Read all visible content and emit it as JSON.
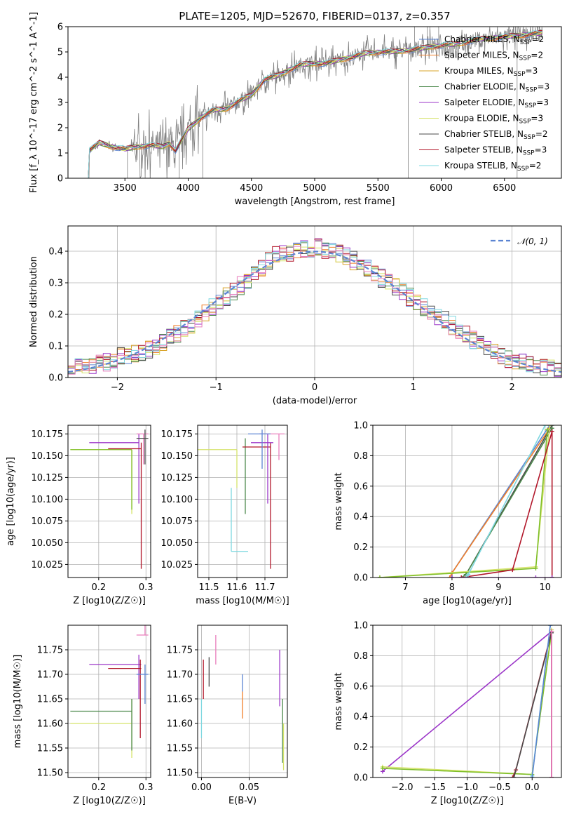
{
  "figure": {
    "title": "PLATE=1205, MJD=52670, FIBERID=0137, z=0.357"
  },
  "colors": {
    "chabrier_miles": "#5b84d2",
    "salpeter_miles": "#f07f2a",
    "kroupa_miles": "#d9a42a",
    "chabrier_elodie": "#4d8a4d",
    "salpeter_elodie": "#9b35c8",
    "kroupa_elodie": "#d5e36a",
    "chabrier_stelib": "#4a4a4a",
    "salpeter_stelib": "#b2182b",
    "kroupa_stelib": "#7fd8e0",
    "data": "#808080",
    "pink": "#e97fbd",
    "lime": "#7fbf2a",
    "grid": "#b0b0b0"
  },
  "chart_data": [
    {
      "id": "spectrum",
      "type": "line",
      "title": "PLATE=1205, MJD=52670, FIBERID=0137, z=0.357",
      "xlabel": "wavelength [Angstrom, rest frame]",
      "ylabel": "Flux [f_λ 10^-17 erg cm^-2 s^-1 A^-1]",
      "xlim": [
        3050,
        6950
      ],
      "ylim": [
        0,
        6
      ],
      "xticks": [
        3500,
        4000,
        4500,
        5000,
        5500,
        6000,
        6500
      ],
      "yticks": [
        0,
        1,
        2,
        3,
        4,
        5,
        6
      ],
      "grid": false,
      "legend_position": "right",
      "legend": [
        {
          "label": "Chabrier MILES, N_SSP=2",
          "color": "#5b84d2"
        },
        {
          "label": "Salpeter MILES, N_SSP=2",
          "color": "#f07f2a"
        },
        {
          "label": "Kroupa MILES, N_SSP=3",
          "color": "#d9a42a"
        },
        {
          "label": "Chabrier ELODIE, N_SSP=3",
          "color": "#4d8a4d"
        },
        {
          "label": "Salpeter ELODIE, N_SSP=3",
          "color": "#9b35c8"
        },
        {
          "label": "Kroupa ELODIE, N_SSP=3",
          "color": "#d5e36a"
        },
        {
          "label": "Chabrier STELIB, N_SSP=2",
          "color": "#4a4a4a"
        },
        {
          "label": "Salpeter STELIB, N_SSP=3",
          "color": "#b2182b"
        },
        {
          "label": "Kroupa STELIB, N_SSP=2",
          "color": "#7fd8e0"
        }
      ],
      "continuum": [
        [
          3220,
          1.1
        ],
        [
          3300,
          1.4
        ],
        [
          3400,
          1.25
        ],
        [
          3500,
          1.15
        ],
        [
          3600,
          1.25
        ],
        [
          3700,
          1.3
        ],
        [
          3800,
          1.25
        ],
        [
          3850,
          1.4
        ],
        [
          3900,
          1.1
        ],
        [
          4000,
          1.95
        ],
        [
          4100,
          2.4
        ],
        [
          4200,
          2.7
        ],
        [
          4300,
          2.75
        ],
        [
          4400,
          3.05
        ],
        [
          4500,
          3.3
        ],
        [
          4600,
          3.9
        ],
        [
          4700,
          4.05
        ],
        [
          4800,
          4.3
        ],
        [
          4900,
          4.5
        ],
        [
          5000,
          4.55
        ],
        [
          5100,
          4.55
        ],
        [
          5200,
          4.7
        ],
        [
          5300,
          4.8
        ],
        [
          5400,
          4.95
        ],
        [
          5500,
          5.0
        ],
        [
          5600,
          5.0
        ],
        [
          5700,
          5.05
        ],
        [
          5800,
          5.1
        ],
        [
          5900,
          5.2
        ],
        [
          6000,
          5.25
        ],
        [
          6100,
          5.3
        ],
        [
          6200,
          5.4
        ],
        [
          6300,
          5.5
        ],
        [
          6400,
          5.55
        ],
        [
          6500,
          5.6
        ],
        [
          6600,
          5.65
        ],
        [
          6700,
          5.7
        ],
        [
          6800,
          5.75
        ]
      ]
    },
    {
      "id": "residuals",
      "type": "line",
      "xlabel": "(data-model)/error",
      "ylabel": "Normed distribution",
      "xlim": [
        -2.5,
        2.5
      ],
      "ylim": [
        0,
        0.48
      ],
      "xticks": [
        -2,
        -1,
        0,
        1,
        2
      ],
      "yticks": [
        0.0,
        0.1,
        0.2,
        0.3,
        0.4
      ],
      "grid": true,
      "legend_position": "upper right",
      "legend": [
        {
          "label": "𝒩(0, 1)",
          "color": "#5b84d2",
          "style": "dashed"
        }
      ],
      "bin_width": 0.1,
      "histogram_mean": [
        0.025,
        0.03,
        0.035,
        0.04,
        0.045,
        0.05,
        0.06,
        0.065,
        0.07,
        0.075,
        0.08,
        0.09,
        0.1,
        0.11,
        0.125,
        0.14,
        0.155,
        0.17,
        0.19,
        0.205,
        0.22,
        0.24,
        0.255,
        0.27,
        0.29,
        0.31,
        0.33,
        0.35,
        0.37,
        0.385,
        0.39,
        0.395,
        0.4,
        0.405,
        0.41,
        0.41,
        0.405,
        0.4,
        0.395,
        0.385,
        0.37,
        0.36,
        0.345,
        0.33,
        0.315,
        0.3,
        0.285,
        0.27,
        0.255,
        0.24,
        0.225,
        0.21,
        0.195,
        0.18,
        0.165,
        0.15,
        0.135,
        0.12,
        0.105,
        0.09,
        0.08,
        0.07,
        0.06,
        0.05,
        0.045,
        0.04,
        0.035,
        0.03,
        0.027,
        0.025
      ]
    },
    {
      "id": "age-vs-Z",
      "type": "scatter",
      "xlabel": "Z [log10(Z/Z☉)]",
      "ylabel": "age  [log10(age/yr)]",
      "xlim": [
        0.135,
        0.31
      ],
      "ylim": [
        10.01,
        10.185
      ],
      "xticks": [
        0.2,
        0.3
      ],
      "yticks": [
        10.025,
        10.05,
        10.075,
        10.1,
        10.125,
        10.15,
        10.175
      ],
      "grid": true,
      "errorbars": [
        {
          "x": 0.27,
          "y": 10.157,
          "xlo": 0.14,
          "xhi": 0.27,
          "ylo": 10.083,
          "yhi": 10.157,
          "color": "#d5e36a"
        },
        {
          "x": 0.27,
          "y": 10.157,
          "xlo": 0.14,
          "xhi": 0.27,
          "ylo": 10.088,
          "yhi": 10.157,
          "color": "#7fbf2a"
        },
        {
          "x": 0.285,
          "y": 10.165,
          "xlo": 0.18,
          "xhi": 0.285,
          "ylo": 10.095,
          "yhi": 10.175,
          "color": "#9b35c8"
        },
        {
          "x": 0.29,
          "y": 10.158,
          "xlo": 0.22,
          "xhi": 0.29,
          "ylo": 10.02,
          "yhi": 10.165,
          "color": "#b2182b"
        },
        {
          "x": 0.295,
          "y": 10.175,
          "xlo": 0.28,
          "xhi": 0.305,
          "ylo": 10.14,
          "yhi": 10.175,
          "color": "#e97fbd"
        },
        {
          "x": 0.298,
          "y": 10.17,
          "xlo": 0.28,
          "xhi": 0.305,
          "ylo": 10.14,
          "yhi": 10.18,
          "color": "#4a4a4a"
        }
      ]
    },
    {
      "id": "age-vs-mass",
      "type": "scatter",
      "xlabel": "mass [log10(M/M☉)]",
      "ylabel": "",
      "xlim": [
        11.46,
        11.78
      ],
      "ylim": [
        10.01,
        10.185
      ],
      "xticks": [
        11.5,
        11.6,
        11.7
      ],
      "yticks": [
        10.025,
        10.05,
        10.075,
        10.1,
        10.125,
        10.15,
        10.175
      ],
      "grid": true,
      "errorbars": [
        {
          "x": 11.6,
          "y": 10.157,
          "xlo": 11.46,
          "xhi": 11.6,
          "ylo": 10.113,
          "yhi": 10.157,
          "color": "#d5e36a"
        },
        {
          "x": 11.58,
          "y": 10.04,
          "xlo": 11.58,
          "xhi": 11.64,
          "ylo": 10.04,
          "yhi": 10.113,
          "color": "#7fd8e0"
        },
        {
          "x": 11.63,
          "y": 10.157,
          "xlo": 11.63,
          "xhi": 11.63,
          "ylo": 10.083,
          "yhi": 10.17,
          "color": "#4d8a4d"
        },
        {
          "x": 11.72,
          "y": 10.16,
          "xlo": 11.62,
          "xhi": 11.72,
          "ylo": 10.02,
          "yhi": 10.165,
          "color": "#b2182b"
        },
        {
          "x": 11.71,
          "y": 10.165,
          "xlo": 11.65,
          "xhi": 11.73,
          "ylo": 10.095,
          "yhi": 10.175,
          "color": "#9b35c8"
        },
        {
          "x": 11.75,
          "y": 10.175,
          "xlo": 11.68,
          "xhi": 11.77,
          "ylo": 10.145,
          "yhi": 10.175,
          "color": "#e97fbd"
        },
        {
          "x": 11.69,
          "y": 10.175,
          "xlo": 11.64,
          "xhi": 11.72,
          "ylo": 10.135,
          "yhi": 10.18,
          "color": "#5b84d2"
        }
      ]
    },
    {
      "id": "massweight-vs-age",
      "type": "line",
      "xlabel": "age  [log10(age/yr)]",
      "ylabel": "mass weight",
      "xlim": [
        6.3,
        10.35
      ],
      "ylim": [
        0,
        1
      ],
      "xticks": [
        7,
        8,
        9,
        10
      ],
      "yticks": [
        0.0,
        0.2,
        0.4,
        0.6,
        0.8,
        1.0
      ],
      "grid": true,
      "series": [
        {
          "color": "#5b84d2",
          "x": [
            8.0,
            8.0,
            10.1,
            10.1
          ],
          "y": [
            0,
            0.03,
            1.0,
            1.0
          ]
        },
        {
          "color": "#f07f2a",
          "x": [
            7.95,
            8.0,
            10.1
          ],
          "y": [
            0,
            0.03,
            0.98
          ]
        },
        {
          "color": "#4a4a4a",
          "x": [
            8.3,
            8.3,
            10.15
          ],
          "y": [
            0,
            0.02,
            1.0
          ]
        },
        {
          "color": "#4d8a4d",
          "x": [
            8.2,
            8.3,
            10.15
          ],
          "y": [
            0,
            0.02,
            0.98
          ]
        },
        {
          "color": "#d5e36a",
          "x": [
            6.45,
            9.8,
            10.1
          ],
          "y": [
            0,
            0.07,
            1.0
          ]
        },
        {
          "color": "#7fbf2a",
          "x": [
            6.45,
            9.8,
            10.05
          ],
          "y": [
            0,
            0.06,
            0.97
          ]
        },
        {
          "color": "#b2182b",
          "x": [
            8.2,
            9.3,
            10.15,
            10.15
          ],
          "y": [
            0,
            0.05,
            0.96,
            0.0
          ]
        },
        {
          "color": "#7fd8e0",
          "x": [
            8.3,
            8.35,
            10.0
          ],
          "y": [
            0,
            0.02,
            1.0
          ]
        },
        {
          "color": "#9b35c8",
          "x": [
            8.0,
            9.8,
            10.15
          ],
          "y": [
            0,
            0.0,
            0.0
          ]
        }
      ]
    },
    {
      "id": "mass-vs-Z",
      "type": "scatter",
      "xlabel": "Z [log10(Z/Z☉)]",
      "ylabel": "mass [log10(M/M☉)]",
      "xlim": [
        0.135,
        0.31
      ],
      "ylim": [
        11.49,
        11.8
      ],
      "xticks": [
        0.2,
        0.3
      ],
      "yticks": [
        11.5,
        11.55,
        11.6,
        11.65,
        11.7,
        11.75
      ],
      "grid": true,
      "errorbars": [
        {
          "x": 0.27,
          "y": 11.6,
          "xlo": 0.14,
          "xhi": 0.27,
          "ylo": 11.53,
          "yhi": 11.65,
          "color": "#d5e36a"
        },
        {
          "x": 0.27,
          "y": 11.625,
          "xlo": 0.14,
          "xhi": 0.27,
          "ylo": 11.545,
          "yhi": 11.65,
          "color": "#4d8a4d"
        },
        {
          "x": 0.285,
          "y": 11.72,
          "xlo": 0.18,
          "xhi": 0.29,
          "ylo": 11.65,
          "yhi": 11.74,
          "color": "#9b35c8"
        },
        {
          "x": 0.288,
          "y": 11.712,
          "xlo": 0.22,
          "xhi": 0.29,
          "ylo": 11.57,
          "yhi": 11.73,
          "color": "#b2182b"
        },
        {
          "x": 0.298,
          "y": 11.78,
          "xlo": 0.28,
          "xhi": 0.305,
          "ylo": 11.78,
          "yhi": 11.8,
          "color": "#e97fbd"
        },
        {
          "x": 0.298,
          "y": 11.7,
          "xlo": 0.28,
          "xhi": 0.305,
          "ylo": 11.64,
          "yhi": 11.72,
          "color": "#5b84d2"
        }
      ]
    },
    {
      "id": "mass-vs-ebv",
      "type": "scatter",
      "xlabel": "E(B-V)",
      "ylabel": "",
      "xlim": [
        -0.004,
        0.09
      ],
      "ylim": [
        11.49,
        11.8
      ],
      "xticks": [
        0.0,
        0.05
      ],
      "yticks": [
        11.5,
        11.55,
        11.6,
        11.65,
        11.7,
        11.75
      ],
      "grid": true,
      "vsegments": [
        {
          "x": 0.0,
          "ylo": 11.57,
          "yhi": 11.65,
          "color": "#7fd8e0"
        },
        {
          "x": 0.002,
          "ylo": 11.65,
          "yhi": 11.73,
          "color": "#b2182b"
        },
        {
          "x": 0.008,
          "ylo": 11.675,
          "yhi": 11.735,
          "color": "#4a4a4a"
        },
        {
          "x": 0.015,
          "ylo": 11.72,
          "yhi": 11.78,
          "color": "#e97fbd"
        },
        {
          "x": 0.043,
          "ylo": 11.61,
          "yhi": 11.665,
          "color": "#f07f2a"
        },
        {
          "x": 0.043,
          "ylo": 11.665,
          "yhi": 11.7,
          "color": "#5b84d2"
        },
        {
          "x": 0.082,
          "ylo": 11.635,
          "yhi": 11.75,
          "color": "#9b35c8"
        },
        {
          "x": 0.085,
          "ylo": 11.52,
          "yhi": 11.65,
          "color": "#4d8a4d"
        },
        {
          "x": 0.086,
          "ylo": 11.505,
          "yhi": 11.6,
          "color": "#d5e36a"
        }
      ]
    },
    {
      "id": "massweight-vs-Z",
      "type": "line",
      "xlabel": "Z [log10(Z/Z☉)]",
      "ylabel": "mass weight",
      "xlim": [
        -2.45,
        0.45
      ],
      "ylim": [
        0,
        1
      ],
      "xticks": [
        -2.0,
        -1.5,
        -1.0,
        -0.5,
        0.0
      ],
      "yticks": [
        0.0,
        0.2,
        0.4,
        0.6,
        0.8,
        1.0
      ],
      "grid": true,
      "series": [
        {
          "color": "#9b35c8",
          "x": [
            -2.3,
            0.3,
            0.3
          ],
          "y": [
            0.04,
            0.96,
            0.0
          ]
        },
        {
          "color": "#d5e36a",
          "x": [
            -2.3,
            0.0,
            0.3
          ],
          "y": [
            0.07,
            0.02,
            0.97
          ]
        },
        {
          "color": "#7fbf2a",
          "x": [
            -2.3,
            0.0,
            0.3
          ],
          "y": [
            0.06,
            0.02,
            0.96
          ]
        },
        {
          "color": "#b2182b",
          "x": [
            -0.3,
            -0.25,
            0.3,
            0.3
          ],
          "y": [
            0.0,
            0.05,
            0.96,
            0.0
          ]
        },
        {
          "color": "#4a4a4a",
          "x": [
            -0.28,
            0.3
          ],
          "y": [
            0.0,
            0.95
          ]
        },
        {
          "color": "#7fd8e0",
          "x": [
            0.0,
            0.0,
            0.28
          ],
          "y": [
            0.0,
            0.01,
            1.0
          ]
        },
        {
          "color": "#5b84d2",
          "x": [
            0.0,
            0.28
          ],
          "y": [
            0.0,
            1.0
          ]
        },
        {
          "color": "#e97fbd",
          "x": [
            0.3,
            0.3
          ],
          "y": [
            0.0,
            0.96
          ]
        }
      ]
    }
  ]
}
